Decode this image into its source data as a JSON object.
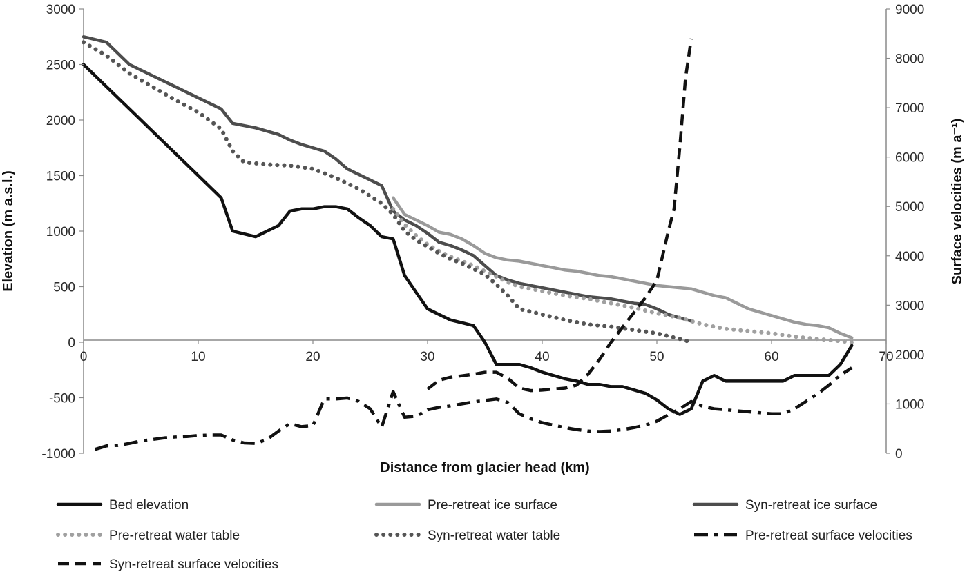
{
  "chart_data": {
    "type": "line",
    "title": "",
    "xlabel": "Distance from glacier head (km)",
    "ylabel": "Elevation (m a.s.l.)",
    "y2label": "Surface velocities (m a⁻¹)",
    "xlim": [
      0,
      70
    ],
    "ylim": [
      -1000,
      3000
    ],
    "y2lim": [
      0,
      9000
    ],
    "xticks": [
      "0",
      "10",
      "20",
      "30",
      "40",
      "50",
      "60",
      "70"
    ],
    "yticks": [
      "3000",
      "2500",
      "2000",
      "1500",
      "1000",
      "500",
      "0",
      "-500",
      "-1000"
    ],
    "y2ticks": [
      "9000",
      "8000",
      "7000",
      "6000",
      "5000",
      "4000",
      "3000",
      "2000",
      "1000",
      "0"
    ],
    "grid": false,
    "legend_position": "bottom",
    "series": [
      {
        "name": "Bed elevation",
        "axis": "left",
        "color": "#111111",
        "style": "solid",
        "x": [
          0,
          2,
          4,
          6,
          8,
          10,
          12,
          13,
          15,
          17,
          18,
          19,
          20,
          21,
          22,
          23,
          24,
          25,
          26,
          27,
          28,
          29,
          30,
          31,
          32,
          33,
          34,
          35,
          36,
          37,
          38,
          39,
          40,
          41,
          42,
          43,
          44,
          45,
          46,
          47,
          48,
          49,
          50,
          51,
          52,
          53,
          54,
          55,
          56,
          57,
          58,
          59,
          60,
          61,
          62,
          63,
          64,
          65,
          66,
          67
        ],
        "y": [
          2500,
          2300,
          2100,
          1900,
          1700,
          1500,
          1300,
          1000,
          950,
          1050,
          1180,
          1200,
          1200,
          1220,
          1220,
          1200,
          1120,
          1050,
          950,
          930,
          600,
          450,
          300,
          250,
          200,
          175,
          150,
          0,
          -200,
          -200,
          -200,
          -230,
          -270,
          -300,
          -330,
          -350,
          -380,
          -380,
          -400,
          -400,
          -430,
          -460,
          -520,
          -600,
          -650,
          -600,
          -350,
          -300,
          -350,
          -350,
          -350,
          -350,
          -350,
          -350,
          -300,
          -300,
          -300,
          -300,
          -200,
          -30
        ]
      },
      {
        "name": "Pre-retreat ice surface",
        "axis": "left",
        "color": "#9a9a9a",
        "style": "solid",
        "x": [
          27,
          28,
          29,
          30,
          31,
          32,
          33,
          34,
          35,
          36,
          37,
          38,
          39,
          40,
          41,
          42,
          43,
          44,
          45,
          46,
          47,
          48,
          49,
          50,
          51,
          52,
          53,
          54,
          55,
          56,
          57,
          58,
          59,
          60,
          61,
          62,
          63,
          64,
          65,
          66,
          67
        ],
        "y": [
          1300,
          1150,
          1100,
          1050,
          990,
          970,
          930,
          870,
          800,
          760,
          740,
          730,
          710,
          690,
          670,
          650,
          640,
          620,
          600,
          590,
          570,
          550,
          530,
          510,
          500,
          490,
          480,
          450,
          420,
          400,
          350,
          300,
          270,
          240,
          210,
          180,
          160,
          150,
          130,
          80,
          40
        ]
      },
      {
        "name": "Syn-retreat ice surface",
        "axis": "left",
        "color": "#4d4d4d",
        "style": "solid",
        "x": [
          0,
          2,
          4,
          6,
          8,
          10,
          12,
          13,
          15,
          17,
          18,
          19,
          21,
          22,
          23,
          25,
          26,
          27,
          28,
          29,
          30,
          31,
          32,
          33,
          34,
          35,
          36,
          37,
          38,
          39,
          40,
          41,
          42,
          43,
          44,
          45,
          46,
          47,
          48,
          49,
          50,
          51,
          52,
          53
        ],
        "y": [
          2750,
          2700,
          2500,
          2400,
          2300,
          2200,
          2100,
          1970,
          1930,
          1870,
          1820,
          1780,
          1720,
          1650,
          1560,
          1460,
          1410,
          1180,
          1100,
          1050,
          980,
          900,
          870,
          830,
          780,
          690,
          600,
          560,
          530,
          510,
          490,
          470,
          450,
          430,
          410,
          400,
          390,
          370,
          350,
          340,
          300,
          250,
          220,
          190
        ]
      },
      {
        "name": "Pre-retreat water table",
        "axis": "left",
        "color": "#a0a0a0",
        "style": "dotted",
        "x": [
          27,
          28,
          29,
          30,
          31,
          32,
          33,
          34,
          35,
          36,
          37,
          38,
          39,
          40,
          42,
          44,
          46,
          48,
          50,
          52,
          54,
          56,
          58,
          60,
          62,
          64,
          66,
          67
        ],
        "y": [
          1200,
          1060,
          960,
          880,
          820,
          770,
          730,
          690,
          640,
          590,
          540,
          500,
          480,
          460,
          420,
          390,
          350,
          310,
          260,
          220,
          160,
          120,
          100,
          80,
          50,
          30,
          10,
          0
        ]
      },
      {
        "name": "Syn-retreat water table",
        "axis": "left",
        "color": "#555555",
        "style": "dotted",
        "x": [
          0,
          2,
          4,
          6,
          8,
          10,
          12,
          13,
          14,
          16,
          18,
          20,
          22,
          24,
          26,
          27,
          28,
          29,
          30,
          31,
          32,
          33,
          34,
          35,
          36,
          37,
          38,
          40,
          42,
          44,
          46,
          48,
          50,
          52,
          53
        ],
        "y": [
          2700,
          2580,
          2420,
          2300,
          2180,
          2070,
          1920,
          1720,
          1620,
          1600,
          1590,
          1560,
          1480,
          1380,
          1250,
          1150,
          1000,
          920,
          860,
          800,
          750,
          710,
          660,
          610,
          520,
          420,
          300,
          250,
          200,
          160,
          140,
          110,
          80,
          30,
          0
        ]
      },
      {
        "name": "Pre-retreat surface velocities",
        "axis": "right",
        "color": "#111111",
        "style": "dashdot",
        "x": [
          1,
          2,
          3,
          4,
          5,
          6,
          7,
          8,
          9,
          10,
          11,
          12,
          13,
          14,
          15,
          16,
          17,
          18,
          19,
          20,
          21,
          22,
          23,
          24,
          25,
          26,
          27,
          28,
          29,
          30,
          31,
          32,
          33,
          34,
          35,
          36,
          37,
          38,
          39,
          40,
          41,
          42,
          43,
          44,
          45,
          46,
          47,
          48,
          49,
          50,
          51,
          52,
          53,
          54,
          55,
          56,
          57,
          58,
          59,
          60,
          61,
          62,
          63,
          64,
          65,
          66,
          67
        ],
        "y": [
          80,
          150,
          160,
          200,
          250,
          280,
          310,
          330,
          340,
          360,
          370,
          370,
          270,
          210,
          200,
          280,
          450,
          600,
          540,
          560,
          1100,
          1100,
          1120,
          1050,
          900,
          530,
          1250,
          730,
          750,
          880,
          930,
          960,
          1000,
          1040,
          1070,
          1100,
          1030,
          800,
          700,
          620,
          570,
          520,
          480,
          450,
          440,
          450,
          480,
          520,
          570,
          650,
          780,
          900,
          1050,
          950,
          900,
          880,
          860,
          840,
          820,
          800,
          800,
          900,
          1050,
          1200,
          1380,
          1580,
          1730
        ]
      },
      {
        "name": "Syn-retreat surface velocities",
        "axis": "right",
        "color": "#111111",
        "style": "dashed",
        "x": [
          30,
          31,
          32,
          33,
          34,
          35,
          36,
          37,
          38,
          39,
          40,
          41,
          42,
          43,
          44,
          45,
          46,
          47,
          48,
          49,
          50,
          50.5,
          51,
          51.5,
          52,
          52.5,
          53
        ],
        "y": [
          1300,
          1480,
          1540,
          1570,
          1600,
          1640,
          1640,
          1520,
          1320,
          1270,
          1280,
          1300,
          1320,
          1380,
          1600,
          1900,
          2250,
          2550,
          2850,
          3150,
          3500,
          4000,
          4500,
          4950,
          6200,
          7600,
          8400
        ]
      }
    ]
  }
}
